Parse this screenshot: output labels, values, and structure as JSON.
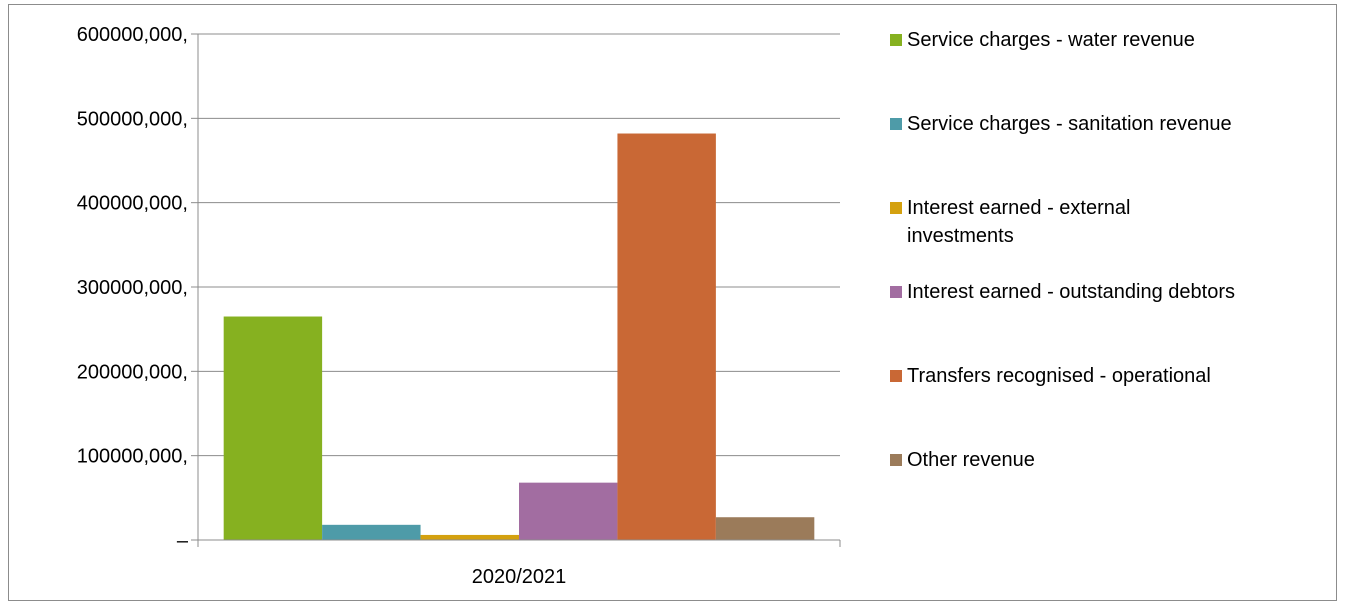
{
  "chart_data": {
    "type": "bar",
    "title": "",
    "xlabel": "",
    "ylabel": "",
    "categories": [
      "2020/2021"
    ],
    "ylim": [
      0,
      600000000
    ],
    "y_ticks": [
      {
        "value": 0,
        "label": "–"
      },
      {
        "value": 100000000,
        "label": "100000,000,"
      },
      {
        "value": 200000000,
        "label": "200000,000,"
      },
      {
        "value": 300000000,
        "label": "300000,000,"
      },
      {
        "value": 400000000,
        "label": "400000,000,"
      },
      {
        "value": 500000000,
        "label": "500000,000,"
      },
      {
        "value": 600000000,
        "label": "600000,000,"
      }
    ],
    "grid": true,
    "legend_position": "right",
    "series": [
      {
        "name": "Service charges - water revenue",
        "values": [
          265000000
        ],
        "color": "#86b120",
        "legend_lines": [
          "Service charges - water revenue"
        ]
      },
      {
        "name": "Service charges - sanitation revenue",
        "values": [
          18000000
        ],
        "color": "#4e9ba8",
        "legend_lines": [
          "Service charges - sanitation revenue"
        ]
      },
      {
        "name": "Interest earned - external investments",
        "values": [
          6000000
        ],
        "color": "#d4a10f",
        "legend_lines": [
          "Interest earned - external",
          "investments"
        ]
      },
      {
        "name": "Interest earned - outstanding debtors",
        "values": [
          68000000
        ],
        "color": "#a26da1",
        "legend_lines": [
          "Interest earned - outstanding debtors"
        ]
      },
      {
        "name": "Transfers recognised - operational",
        "values": [
          482000000
        ],
        "color": "#c96835",
        "legend_lines": [
          "Transfers recognised - operational"
        ]
      },
      {
        "name": "Other revenue",
        "values": [
          27000000
        ],
        "color": "#9b7b5a",
        "legend_lines": [
          "Other revenue"
        ]
      }
    ]
  }
}
